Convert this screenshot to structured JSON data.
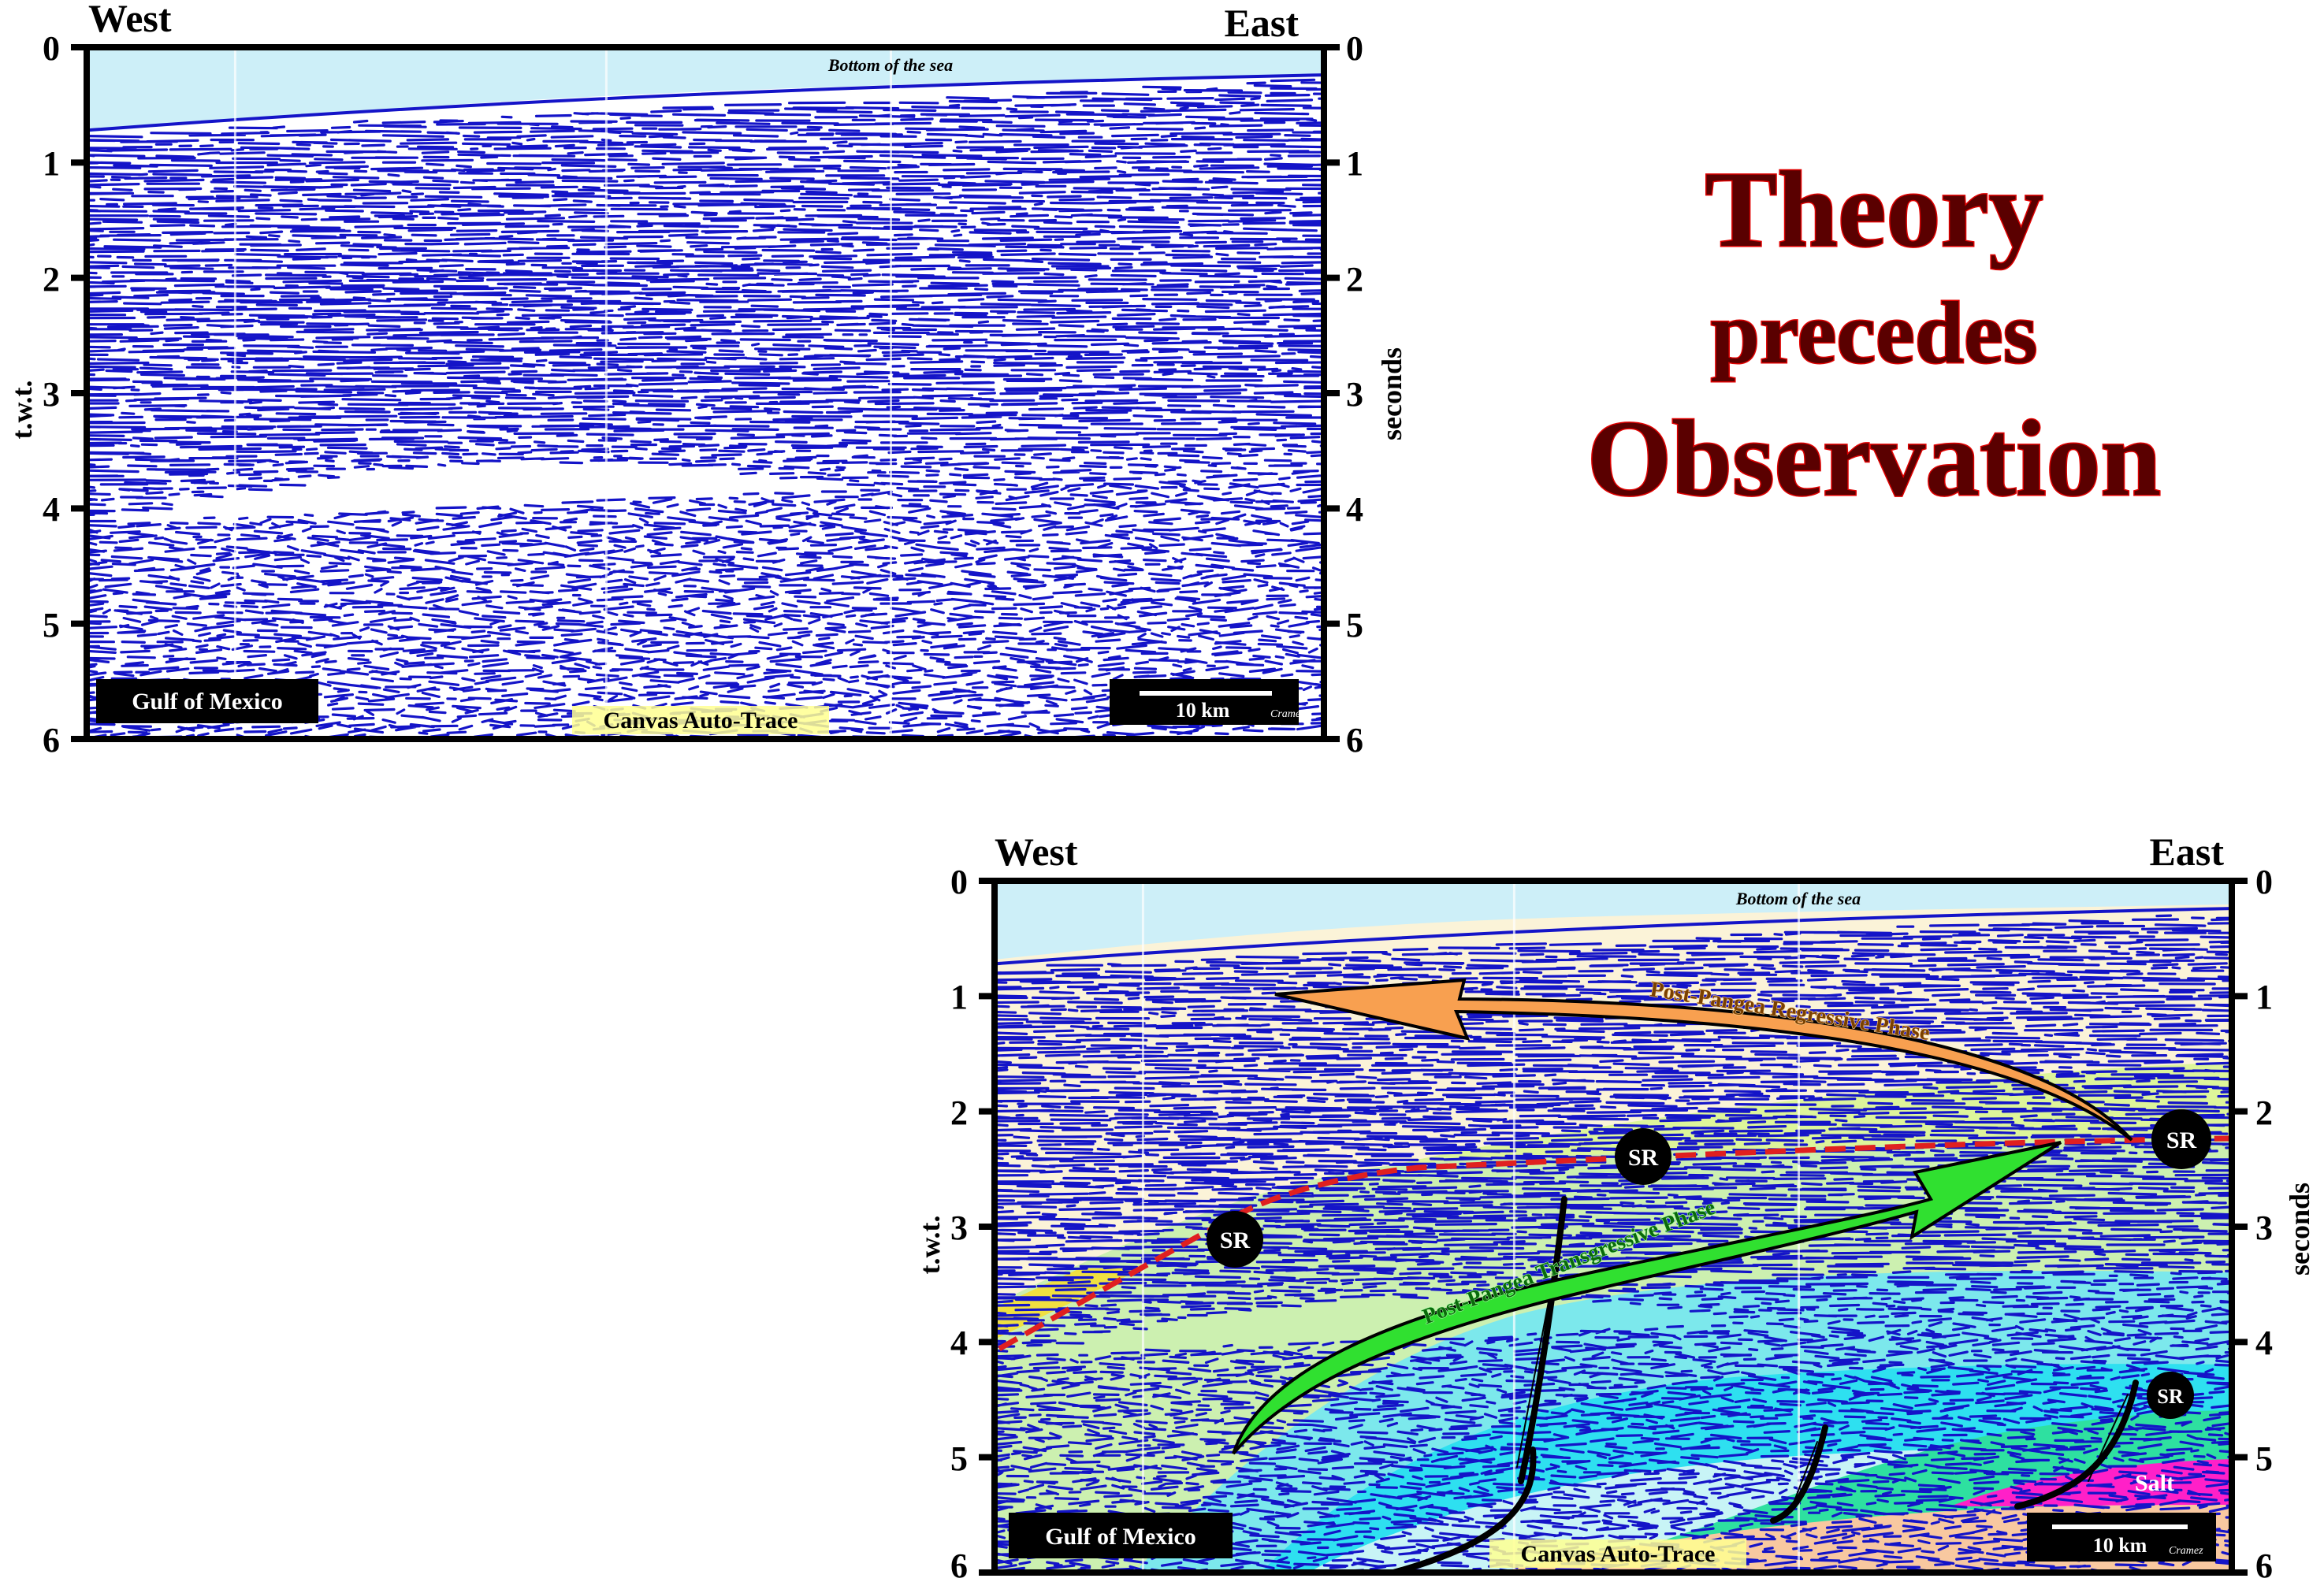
{
  "top_section": {
    "west_label": "West",
    "east_label": "East",
    "left_axis_title": "t.w.t.",
    "right_axis_title": "seconds",
    "ticks_left": [
      "0",
      "1",
      "2",
      "3",
      "4",
      "5",
      "6"
    ],
    "ticks_right": [
      "0",
      "1",
      "2",
      "3",
      "4",
      "5",
      "6"
    ],
    "sea_floor_label": "Bottom of the sea",
    "location_box": "Gulf of Mexico",
    "method_label": "Canvas Auto-Trace",
    "scale_label": "10 km",
    "signature": "Cramez"
  },
  "headline": {
    "line1": "Theory",
    "line2": "precedes",
    "line3": "Observation"
  },
  "bottom_section": {
    "west_label": "West",
    "east_label": "East",
    "left_axis_title": "t.w.t.",
    "right_axis_title": "seconds",
    "ticks_left": [
      "0",
      "1",
      "2",
      "3",
      "4",
      "5",
      "6"
    ],
    "ticks_right": [
      "0",
      "1",
      "2",
      "3",
      "4",
      "5",
      "6"
    ],
    "sea_floor_label": "Bottom of the sea",
    "regressive_label": "Post-Pangea Regressive Phase",
    "transgressive_label": "Post-Pangea Transgressive Phase",
    "sr_markers": [
      "SR",
      "SR",
      "SR",
      "SR"
    ],
    "salt_label": "Salt",
    "location_box": "Gulf of Mexico",
    "method_label": "Canvas Auto-Trace",
    "scale_label": "10 km",
    "signature": "Cramez"
  },
  "colors": {
    "sea": "#cdeff8",
    "reflector": "#1414c8",
    "headline_fill": "#5a0000",
    "headline_stroke": "#e00000",
    "regressive_arrow": "#f8a050",
    "transgressive_arrow": "#30e030",
    "unconformity": "#e02020",
    "salt": "#ff20c8"
  }
}
